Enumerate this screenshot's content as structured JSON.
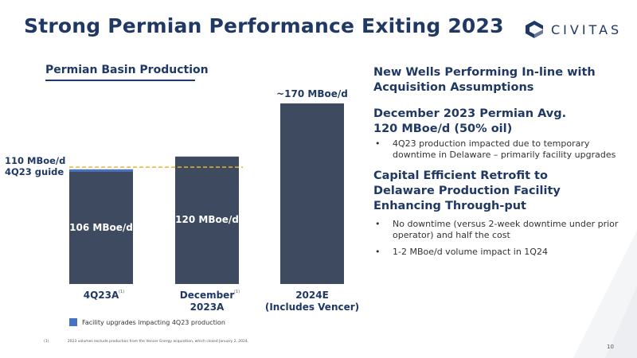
{
  "title": "Strong Permian Performance Exiting 2023",
  "logo": {
    "text": "CIVITAS",
    "icon": "civitas-logo-icon"
  },
  "page_number": "10",
  "footnote": {
    "marker": "(1)",
    "text": "2023 volumes exclude production from the Vencer Energy acquisition, which closed January 2, 2024."
  },
  "colors": {
    "bar": "#3d4a60",
    "facility": "#4472c4",
    "guide_line": "#f0b323",
    "title": "#1f3864"
  },
  "right_panel": {
    "section1": {
      "heading": "New Wells Performing In-line with Acquisition Assumptions"
    },
    "section2": {
      "heading": "December 2023 Permian Avg. 120 MBoe/d (50% oil)",
      "bullets": [
        "4Q23 production impacted due to temporary downtime in Delaware – primarily facility upgrades"
      ]
    },
    "section3": {
      "heading": "Capital Efficient Retrofit to Delaware Production Facility Enhancing Through-put",
      "bullets": [
        "No downtime (versus 2-week downtime under prior operator) and half the cost",
        "1-2 MBoe/d volume impact in 1Q24"
      ]
    }
  },
  "chart_data": {
    "type": "bar",
    "title": "Permian Basin Production",
    "unit": "MBoe/d",
    "categories": [
      "4Q23A",
      "December 2023A",
      "2024E (Includes Vencer)"
    ],
    "category_lines": [
      [
        "4Q23A"
      ],
      [
        "December",
        "2023A"
      ],
      [
        "2024E",
        "(Includes Vencer)"
      ]
    ],
    "category_superscripts": [
      "(1)",
      "(1)",
      ""
    ],
    "series": [
      {
        "name": "",
        "values": [
          106,
          120,
          170
        ]
      },
      {
        "name": "Facility upgrades impacting 4Q23 production",
        "values": [
          2,
          0,
          0
        ]
      }
    ],
    "data_labels": [
      "106 MBoe/d",
      "120 MBoe/d",
      "~170 MBoe/d"
    ],
    "guide": {
      "value": 110,
      "label_lines": [
        "110 MBoe/d",
        "4Q23 guide"
      ]
    },
    "legend": "bottom-left",
    "ylim": [
      0,
      175
    ]
  }
}
